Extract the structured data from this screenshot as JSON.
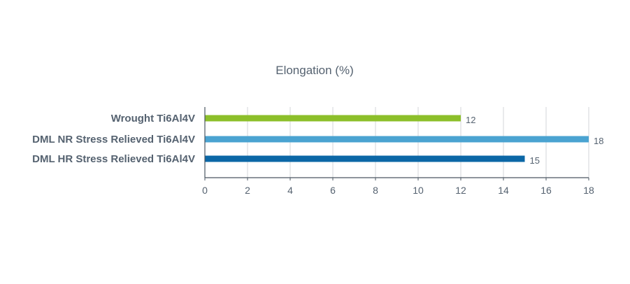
{
  "chart_data": {
    "type": "bar",
    "orientation": "horizontal",
    "title": "Elongation (%)",
    "xlabel": "",
    "ylabel": "",
    "categories": [
      "Wrought Ti6Al4V",
      "DML NR Stress Relieved Ti6Al4V",
      "DML HR Stress Relieved Ti6Al4V"
    ],
    "values": [
      12,
      18,
      15
    ],
    "value_labels": [
      "12",
      "18",
      "15"
    ],
    "colors": [
      "#8cbf2a",
      "#4aa3d1",
      "#0b67a6"
    ],
    "xlim": [
      0,
      18
    ],
    "x_ticks": [
      0,
      2,
      4,
      6,
      8,
      10,
      12,
      14,
      16,
      18
    ],
    "x_tick_labels": [
      "0",
      "2",
      "4",
      "6",
      "8",
      "10",
      "12",
      "14",
      "16",
      "18"
    ],
    "grid": "vertical",
    "legend": "none",
    "axis_color": "#4a5560",
    "grid_color": "#d3d6da",
    "text_color": "#556270"
  }
}
